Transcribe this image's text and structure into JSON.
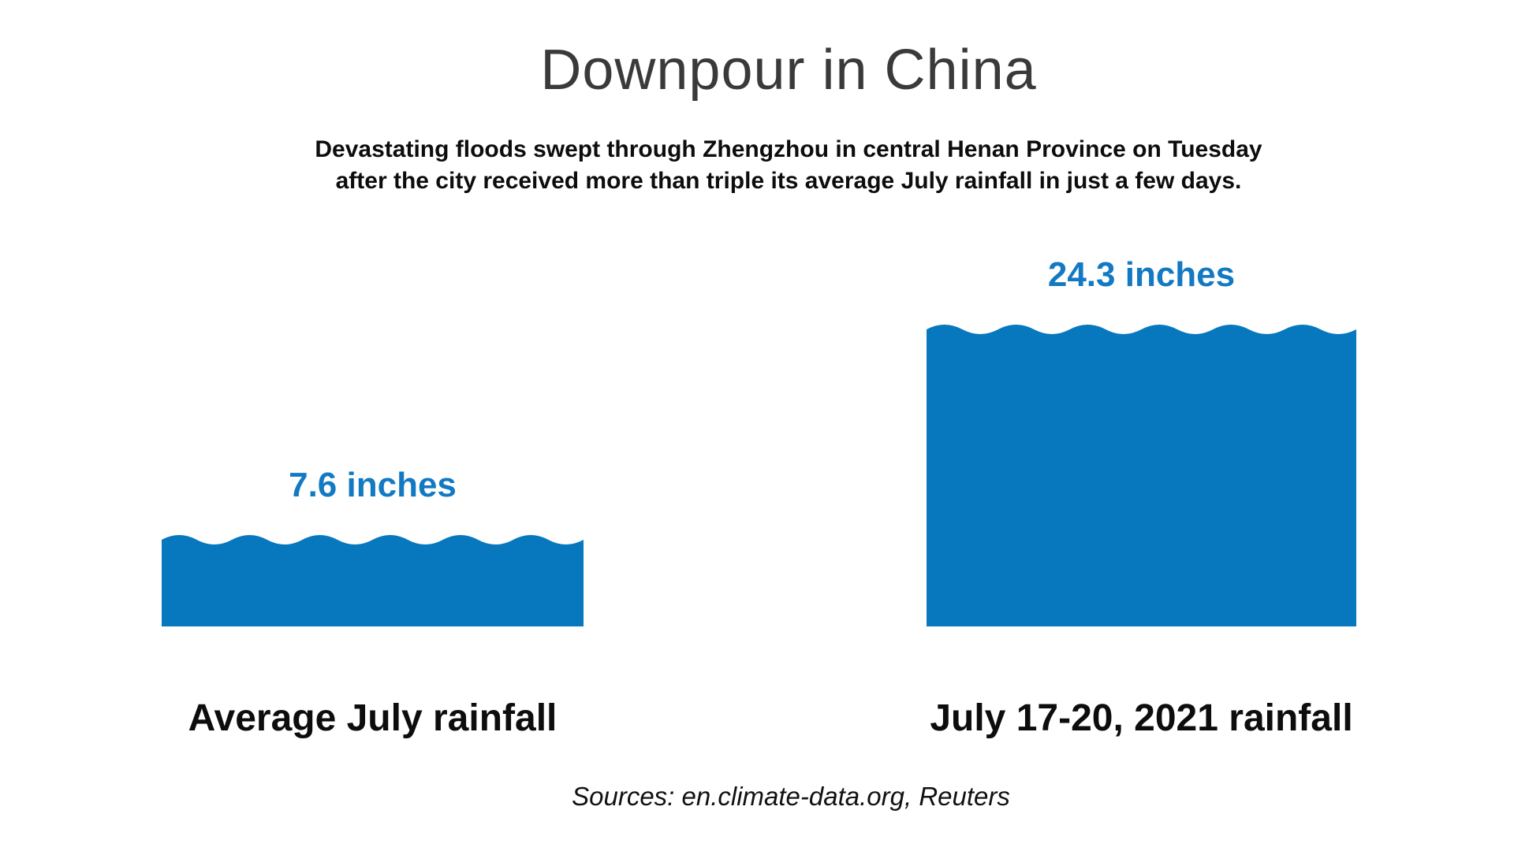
{
  "header": {
    "title": "Downpour in China",
    "subtitle_line1": "Devastating floods swept through Zhengzhou in central Henan Province on Tuesday",
    "subtitle_line2": "after the city received more than triple its average July rainfall in just a few days."
  },
  "footer": {
    "sources": "Sources: en.climate-data.org, Reuters"
  },
  "colors": {
    "bar_blue": "#0778be",
    "value_blue": "#1379c2",
    "text_black": "#0d0d0d",
    "title_gray": "#3a3a3a",
    "background": "#ffffff"
  },
  "chart_data": {
    "type": "bar",
    "title": "Downpour in China",
    "subtitle": "Devastating floods swept through Zhengzhou in central Henan Province on Tuesday after the city received more than triple its average July rainfall in just a few days.",
    "unit": "inches",
    "categories": [
      "Average July rainfall",
      "July 17-20, 2021 rainfall"
    ],
    "values": [
      7.6,
      24.3
    ],
    "value_labels": [
      "7.6 inches",
      "24.3 inches"
    ],
    "orientation": "vertical",
    "bar_style": "water-wave-top",
    "grid": false,
    "axes_shown": false,
    "legend": "none",
    "sources": "Sources: en.climate-data.org, Reuters"
  }
}
